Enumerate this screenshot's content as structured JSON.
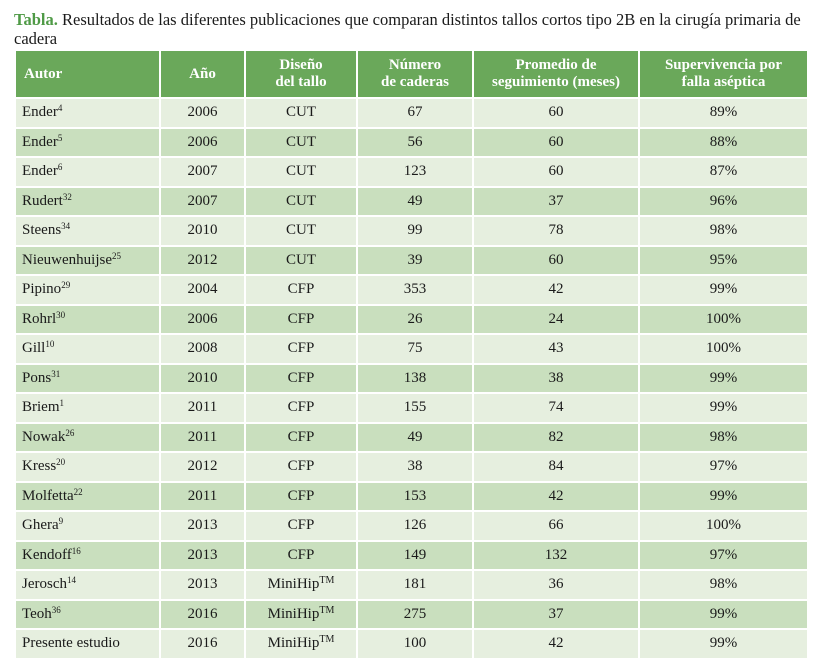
{
  "caption": {
    "label": "Tabla.",
    "text": "Resultados de las diferentes publicaciones que comparan distintos tallos cortos tipo 2B en la cirugía primaria de cadera"
  },
  "headers": {
    "autor": "Autor",
    "anio": "Año",
    "diseno_1": "Diseño",
    "diseno_2": "del tallo",
    "numero_1": "Número",
    "numero_2": "de caderas",
    "promedio_1": "Promedio de",
    "promedio_2": "seguimiento (meses)",
    "superv_1": "Supervivencia por",
    "superv_2": "falla aséptica"
  },
  "rows": [
    {
      "autor": "Ender",
      "ref": "4",
      "anio": "2006",
      "diseno": "CUT",
      "tm": "",
      "caderas": "67",
      "seguimiento": "60",
      "supervivencia": "89%"
    },
    {
      "autor": "Ender",
      "ref": "5",
      "anio": "2006",
      "diseno": "CUT",
      "tm": "",
      "caderas": "56",
      "seguimiento": "60",
      "supervivencia": "88%"
    },
    {
      "autor": "Ender",
      "ref": "6",
      "anio": "2007",
      "diseno": "CUT",
      "tm": "",
      "caderas": "123",
      "seguimiento": "60",
      "supervivencia": "87%"
    },
    {
      "autor": "Rudert",
      "ref": "32",
      "anio": "2007",
      "diseno": "CUT",
      "tm": "",
      "caderas": "49",
      "seguimiento": "37",
      "supervivencia": "96%"
    },
    {
      "autor": "Steens",
      "ref": "34",
      "anio": "2010",
      "diseno": "CUT",
      "tm": "",
      "caderas": "99",
      "seguimiento": "78",
      "supervivencia": "98%"
    },
    {
      "autor": "Nieuwenhuijse",
      "ref": "25",
      "anio": "2012",
      "diseno": "CUT",
      "tm": "",
      "caderas": "39",
      "seguimiento": "60",
      "supervivencia": "95%"
    },
    {
      "autor": "Pipino",
      "ref": "29",
      "anio": "2004",
      "diseno": "CFP",
      "tm": "",
      "caderas": "353",
      "seguimiento": "42",
      "supervivencia": "99%"
    },
    {
      "autor": "Rohrl",
      "ref": "30",
      "anio": "2006",
      "diseno": "CFP",
      "tm": "",
      "caderas": "26",
      "seguimiento": "24",
      "supervivencia": "100%"
    },
    {
      "autor": "Gill",
      "ref": "10",
      "anio": "2008",
      "diseno": "CFP",
      "tm": "",
      "caderas": "75",
      "seguimiento": "43",
      "supervivencia": "100%"
    },
    {
      "autor": "Pons",
      "ref": "31",
      "anio": "2010",
      "diseno": "CFP",
      "tm": "",
      "caderas": "138",
      "seguimiento": "38",
      "supervivencia": "99%"
    },
    {
      "autor": "Briem",
      "ref": "1",
      "anio": "2011",
      "diseno": "CFP",
      "tm": "",
      "caderas": "155",
      "seguimiento": "74",
      "supervivencia": "99%"
    },
    {
      "autor": "Nowak",
      "ref": "26",
      "anio": "2011",
      "diseno": "CFP",
      "tm": "",
      "caderas": "49",
      "seguimiento": "82",
      "supervivencia": "98%"
    },
    {
      "autor": "Kress",
      "ref": "20",
      "anio": "2012",
      "diseno": "CFP",
      "tm": "",
      "caderas": "38",
      "seguimiento": "84",
      "supervivencia": "97%"
    },
    {
      "autor": "Molfetta",
      "ref": "22",
      "anio": "2011",
      "diseno": "CFP",
      "tm": "",
      "caderas": "153",
      "seguimiento": "42",
      "supervivencia": "99%"
    },
    {
      "autor": "Ghera",
      "ref": "9",
      "anio": "2013",
      "diseno": "CFP",
      "tm": "",
      "caderas": "126",
      "seguimiento": "66",
      "supervivencia": "100%"
    },
    {
      "autor": "Kendoff",
      "ref": "16",
      "anio": "2013",
      "diseno": "CFP",
      "tm": "",
      "caderas": "149",
      "seguimiento": "132",
      "supervivencia": "97%"
    },
    {
      "autor": "Jerosch",
      "ref": "14",
      "anio": "2013",
      "diseno": "MiniHip",
      "tm": "TM",
      "caderas": "181",
      "seguimiento": "36",
      "supervivencia": "98%"
    },
    {
      "autor": "Teoh",
      "ref": "36",
      "anio": "2016",
      "diseno": "MiniHip",
      "tm": "TM",
      "caderas": "275",
      "seguimiento": "37",
      "supervivencia": "99%"
    },
    {
      "autor": "Presente estudio",
      "ref": "",
      "anio": "2016",
      "diseno": "MiniHip",
      "tm": "TM",
      "caderas": "100",
      "seguimiento": "42",
      "supervivencia": "99%"
    }
  ]
}
